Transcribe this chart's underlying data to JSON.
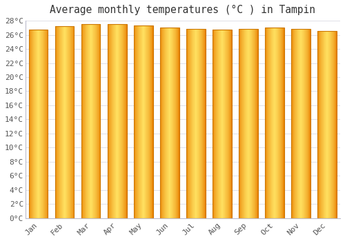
{
  "title": "Average monthly temperatures (°C ) in Tampin",
  "months": [
    "Jan",
    "Feb",
    "Mar",
    "Apr",
    "May",
    "Jun",
    "Jul",
    "Aug",
    "Sep",
    "Oct",
    "Nov",
    "Dec"
  ],
  "values": [
    26.7,
    27.2,
    27.5,
    27.5,
    27.3,
    27.0,
    26.8,
    26.7,
    26.8,
    27.0,
    26.8,
    26.5
  ],
  "bar_color_center": "#FFE060",
  "bar_color_edge": "#E88000",
  "background_color": "#FFFFFF",
  "grid_color": "#E0E0E8",
  "ylim": [
    0,
    28
  ],
  "ytick_step": 2,
  "title_fontsize": 10.5,
  "tick_fontsize": 8,
  "bar_width": 0.72,
  "bar_edge_color": "#CC7700",
  "bar_edge_width": 0.8
}
